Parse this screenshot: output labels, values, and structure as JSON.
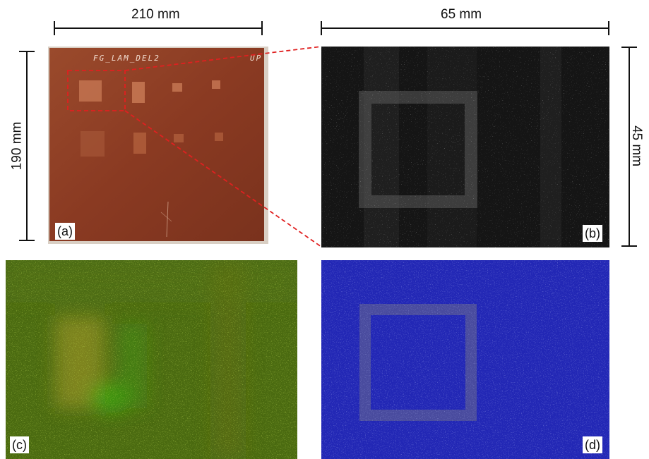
{
  "dimensions": {
    "a_width": "210 mm",
    "a_height": "190 mm",
    "b_width": "65 mm",
    "b_height": "45 mm"
  },
  "panels": {
    "a": {
      "tag": "(a)",
      "plate_text": "FG_LAM_DEL2",
      "corner_text": "UP"
    },
    "b": {
      "tag": "(b)"
    },
    "c": {
      "tag": "(c)"
    },
    "d": {
      "tag": "(d)"
    }
  },
  "colors": {
    "plate": "#8a3a22",
    "zoom_box": "#e02020",
    "panel_b_bg": "#151515",
    "panel_c_bg": "#4a6a10",
    "panel_d_bg": "#1f25b0"
  }
}
